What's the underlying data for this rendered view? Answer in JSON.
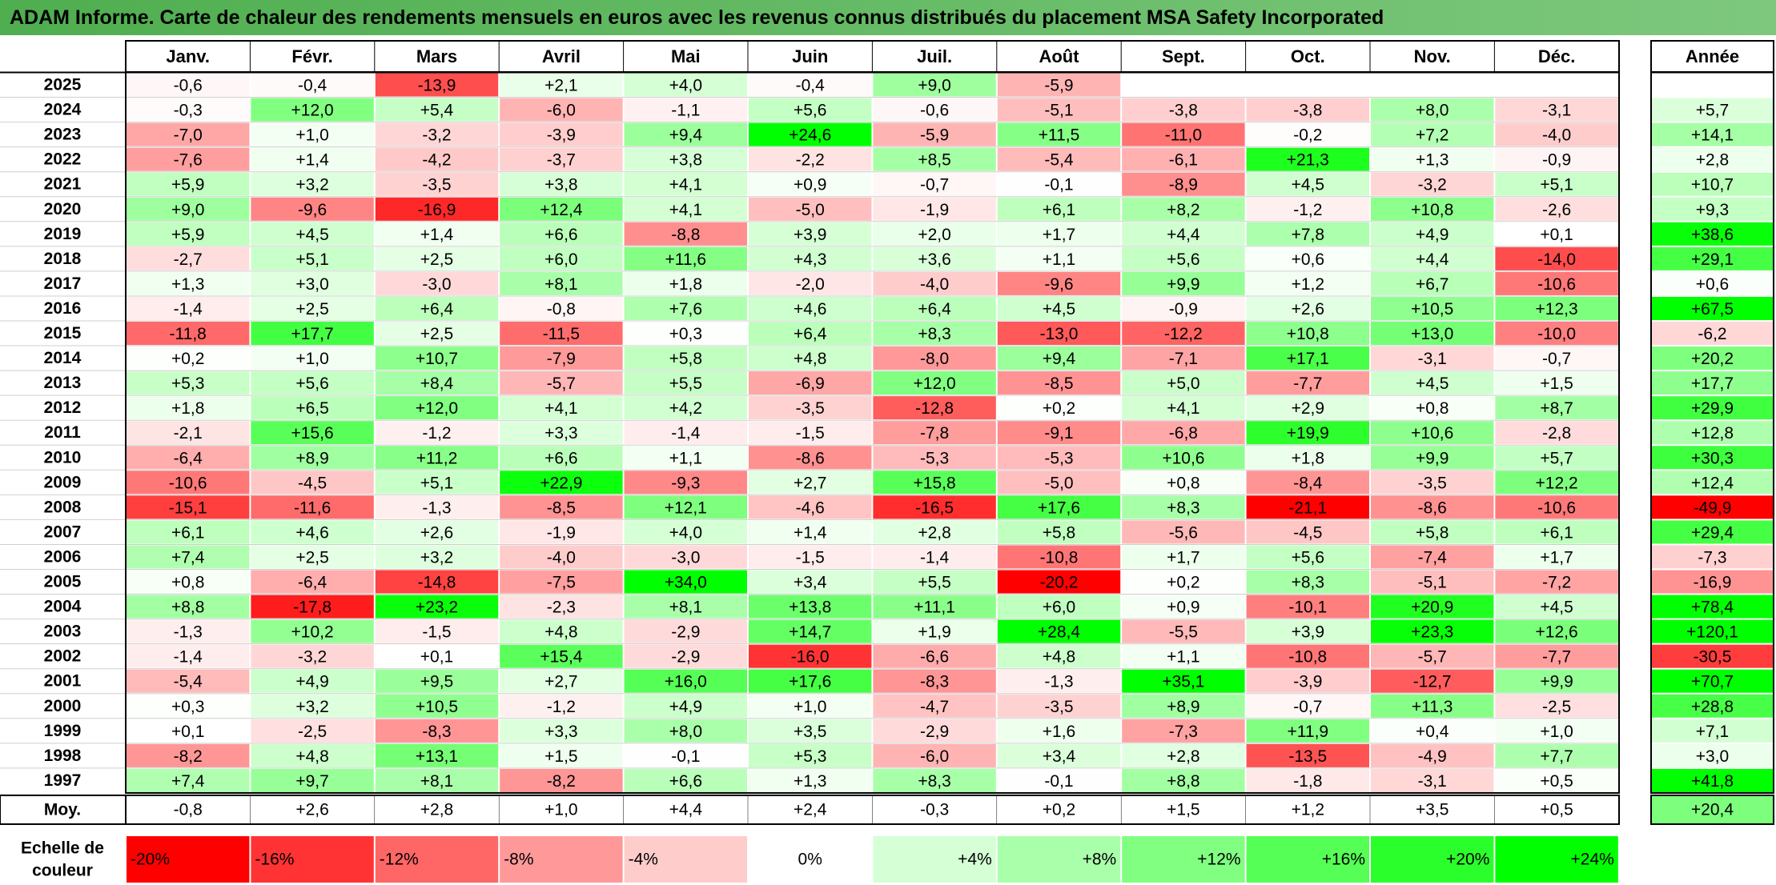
{
  "title": "ADAM Informe. Carte de chaleur des rendements mensuels en euros avec les revenus connus distribués du placement MSA Safety Incorporated",
  "chart_data": {
    "type": "heatmap",
    "months": [
      "Janv.",
      "Févr.",
      "Mars",
      "Avril",
      "Mai",
      "Juin",
      "Juil.",
      "Août",
      "Sept.",
      "Oct.",
      "Nov.",
      "Déc."
    ],
    "year_header": "Année",
    "rows": [
      {
        "year": "2025",
        "values": [
          "-0,6",
          "-0,4",
          "-13,9",
          "+2,1",
          "+4,0",
          "-0,4",
          "+9,0",
          "-5,9",
          "",
          "",
          "",
          ""
        ],
        "annual": ""
      },
      {
        "year": "2024",
        "values": [
          "-0,3",
          "+12,0",
          "+5,4",
          "-6,0",
          "-1,1",
          "+5,6",
          "-0,6",
          "-5,1",
          "-3,8",
          "-3,8",
          "+8,0",
          "-3,1"
        ],
        "annual": "+5,7"
      },
      {
        "year": "2023",
        "values": [
          "-7,0",
          "+1,0",
          "-3,2",
          "-3,9",
          "+9,4",
          "+24,6",
          "-5,9",
          "+11,5",
          "-11,0",
          "-0,2",
          "+7,2",
          "-4,0"
        ],
        "annual": "+14,1"
      },
      {
        "year": "2022",
        "values": [
          "-7,6",
          "+1,4",
          "-4,2",
          "-3,7",
          "+3,8",
          "-2,2",
          "+8,5",
          "-5,4",
          "-6,1",
          "+21,3",
          "+1,3",
          "-0,9"
        ],
        "annual": "+2,8"
      },
      {
        "year": "2021",
        "values": [
          "+5,9",
          "+3,2",
          "-3,5",
          "+3,8",
          "+4,1",
          "+0,9",
          "-0,7",
          "-0,1",
          "-8,9",
          "+4,5",
          "-3,2",
          "+5,1"
        ],
        "annual": "+10,7"
      },
      {
        "year": "2020",
        "values": [
          "+9,0",
          "-9,6",
          "-16,9",
          "+12,4",
          "+4,1",
          "-5,0",
          "-1,9",
          "+6,1",
          "+8,2",
          "-1,2",
          "+10,8",
          "-2,6"
        ],
        "annual": "+9,3"
      },
      {
        "year": "2019",
        "values": [
          "+5,9",
          "+4,5",
          "+1,4",
          "+6,6",
          "-8,8",
          "+3,9",
          "+2,0",
          "+1,7",
          "+4,4",
          "+7,8",
          "+4,9",
          "+0,1"
        ],
        "annual": "+38,6"
      },
      {
        "year": "2018",
        "values": [
          "-2,7",
          "+5,1",
          "+2,5",
          "+6,0",
          "+11,6",
          "+4,3",
          "+3,6",
          "+1,1",
          "+5,6",
          "+0,6",
          "+4,4",
          "-14,0"
        ],
        "annual": "+29,1"
      },
      {
        "year": "2017",
        "values": [
          "+1,3",
          "+3,0",
          "-3,0",
          "+8,1",
          "+1,8",
          "-2,0",
          "-4,0",
          "-9,6",
          "+9,9",
          "+1,2",
          "+6,7",
          "-10,6"
        ],
        "annual": "+0,6"
      },
      {
        "year": "2016",
        "values": [
          "-1,4",
          "+2,5",
          "+6,4",
          "-0,8",
          "+7,6",
          "+4,6",
          "+6,4",
          "+4,5",
          "-0,9",
          "+2,6",
          "+10,5",
          "+12,3"
        ],
        "annual": "+67,5"
      },
      {
        "year": "2015",
        "values": [
          "-11,8",
          "+17,7",
          "+2,5",
          "-11,5",
          "+0,3",
          "+6,4",
          "+8,3",
          "-13,0",
          "-12,2",
          "+10,8",
          "+13,0",
          "-10,0"
        ],
        "annual": "-6,2"
      },
      {
        "year": "2014",
        "values": [
          "+0,2",
          "+1,0",
          "+10,7",
          "-7,9",
          "+5,8",
          "+4,8",
          "-8,0",
          "+9,4",
          "-7,1",
          "+17,1",
          "-3,1",
          "-0,7"
        ],
        "annual": "+20,2"
      },
      {
        "year": "2013",
        "values": [
          "+5,3",
          "+5,6",
          "+8,4",
          "-5,7",
          "+5,5",
          "-6,9",
          "+12,0",
          "-8,5",
          "+5,0",
          "-7,7",
          "+4,5",
          "+1,5"
        ],
        "annual": "+17,7"
      },
      {
        "year": "2012",
        "values": [
          "+1,8",
          "+6,5",
          "+12,0",
          "+4,1",
          "+4,2",
          "-3,5",
          "-12,8",
          "+0,2",
          "+4,1",
          "+2,9",
          "+0,8",
          "+8,7"
        ],
        "annual": "+29,9"
      },
      {
        "year": "2011",
        "values": [
          "-2,1",
          "+15,6",
          "-1,2",
          "+3,3",
          "-1,4",
          "-1,5",
          "-7,8",
          "-9,1",
          "-6,8",
          "+19,9",
          "+10,6",
          "-2,8"
        ],
        "annual": "+12,8"
      },
      {
        "year": "2010",
        "values": [
          "-6,4",
          "+8,9",
          "+11,2",
          "+6,6",
          "+1,1",
          "-8,6",
          "-5,3",
          "-5,3",
          "+10,6",
          "+1,8",
          "+9,9",
          "+5,7"
        ],
        "annual": "+30,3"
      },
      {
        "year": "2009",
        "values": [
          "-10,6",
          "-4,5",
          "+5,1",
          "+22,9",
          "-9,3",
          "+2,7",
          "+15,8",
          "-5,0",
          "+0,8",
          "-8,4",
          "-3,5",
          "+12,2"
        ],
        "annual": "+12,4"
      },
      {
        "year": "2008",
        "values": [
          "-15,1",
          "-11,6",
          "-1,3",
          "-8,5",
          "+12,1",
          "-4,6",
          "-16,5",
          "+17,6",
          "+8,3",
          "-21,1",
          "-8,6",
          "-10,6"
        ],
        "annual": "-49,9"
      },
      {
        "year": "2007",
        "values": [
          "+6,1",
          "+4,6",
          "+2,6",
          "-1,9",
          "+4,0",
          "+1,4",
          "+2,8",
          "+5,8",
          "-5,6",
          "-4,5",
          "+5,8",
          "+6,1"
        ],
        "annual": "+29,4"
      },
      {
        "year": "2006",
        "values": [
          "+7,4",
          "+2,5",
          "+3,2",
          "-4,0",
          "-3,0",
          "-1,5",
          "-1,4",
          "-10,8",
          "+1,7",
          "+5,6",
          "-7,4",
          "+1,7"
        ],
        "annual": "-7,3"
      },
      {
        "year": "2005",
        "values": [
          "+0,8",
          "-6,4",
          "-14,8",
          "-7,5",
          "+34,0",
          "+3,4",
          "+5,5",
          "-20,2",
          "+0,2",
          "+8,3",
          "-5,1",
          "-7,2"
        ],
        "annual": "-16,9"
      },
      {
        "year": "2004",
        "values": [
          "+8,8",
          "-17,8",
          "+23,2",
          "-2,3",
          "+8,1",
          "+13,8",
          "+11,1",
          "+6,0",
          "+0,9",
          "-10,1",
          "+20,9",
          "+4,5"
        ],
        "annual": "+78,4"
      },
      {
        "year": "2003",
        "values": [
          "-1,3",
          "+10,2",
          "-1,5",
          "+4,8",
          "-2,9",
          "+14,7",
          "+1,9",
          "+28,4",
          "-5,5",
          "+3,9",
          "+23,3",
          "+12,6"
        ],
        "annual": "+120,1"
      },
      {
        "year": "2002",
        "values": [
          "-1,4",
          "-3,2",
          "+0,1",
          "+15,4",
          "-2,9",
          "-16,0",
          "-6,6",
          "+4,8",
          "+1,1",
          "-10,8",
          "-5,7",
          "-7,7"
        ],
        "annual": "-30,5"
      },
      {
        "year": "2001",
        "values": [
          "-5,4",
          "+4,9",
          "+9,5",
          "+2,7",
          "+16,0",
          "+17,6",
          "-8,3",
          "-1,3",
          "+35,1",
          "-3,9",
          "-12,7",
          "+9,9"
        ],
        "annual": "+70,7"
      },
      {
        "year": "2000",
        "values": [
          "+0,3",
          "+3,2",
          "+10,5",
          "-1,2",
          "+4,9",
          "+1,0",
          "-4,7",
          "-3,5",
          "+8,9",
          "-0,7",
          "+11,3",
          "-2,5"
        ],
        "annual": "+28,8"
      },
      {
        "year": "1999",
        "values": [
          "+0,1",
          "-2,5",
          "-8,3",
          "+3,3",
          "+8,0",
          "+3,5",
          "-2,9",
          "+1,6",
          "-7,3",
          "+11,9",
          "+0,4",
          "+1,0"
        ],
        "annual": "+7,1"
      },
      {
        "year": "1998",
        "values": [
          "-8,2",
          "+4,8",
          "+13,1",
          "+1,5",
          "-0,1",
          "+5,3",
          "-6,0",
          "+3,4",
          "+2,8",
          "-13,5",
          "-4,9",
          "+7,7"
        ],
        "annual": "+3,0"
      },
      {
        "year": "1997",
        "values": [
          "+7,4",
          "+9,7",
          "+8,1",
          "-8,2",
          "+6,6",
          "+1,3",
          "+8,3",
          "-0,1",
          "+8,8",
          "-1,8",
          "-3,1",
          "+0,5"
        ],
        "annual": "+41,8"
      }
    ],
    "average": {
      "label": "Moy.",
      "values": [
        "-0,8",
        "+2,6",
        "+2,8",
        "+1,0",
        "+4,4",
        "+2,4",
        "-0,3",
        "+0,2",
        "+1,5",
        "+1,2",
        "+3,5",
        "+0,5"
      ],
      "annual": "+20,4"
    },
    "scale": {
      "label": "Echelle de couleur",
      "steps": [
        "-20%",
        "-16%",
        "-12%",
        "-8%",
        "-4%",
        "0%",
        "+4%",
        "+8%",
        "+12%",
        "+16%",
        "+20%",
        "+24%"
      ],
      "step_values": [
        -20,
        -16,
        -12,
        -8,
        -4,
        0,
        4,
        8,
        12,
        16,
        20,
        24
      ]
    },
    "colors": {
      "negative_max": "#ff0000",
      "neutral": "#ffffff",
      "positive_max": "#00ff00",
      "title_bg": "#5cb85c"
    }
  }
}
